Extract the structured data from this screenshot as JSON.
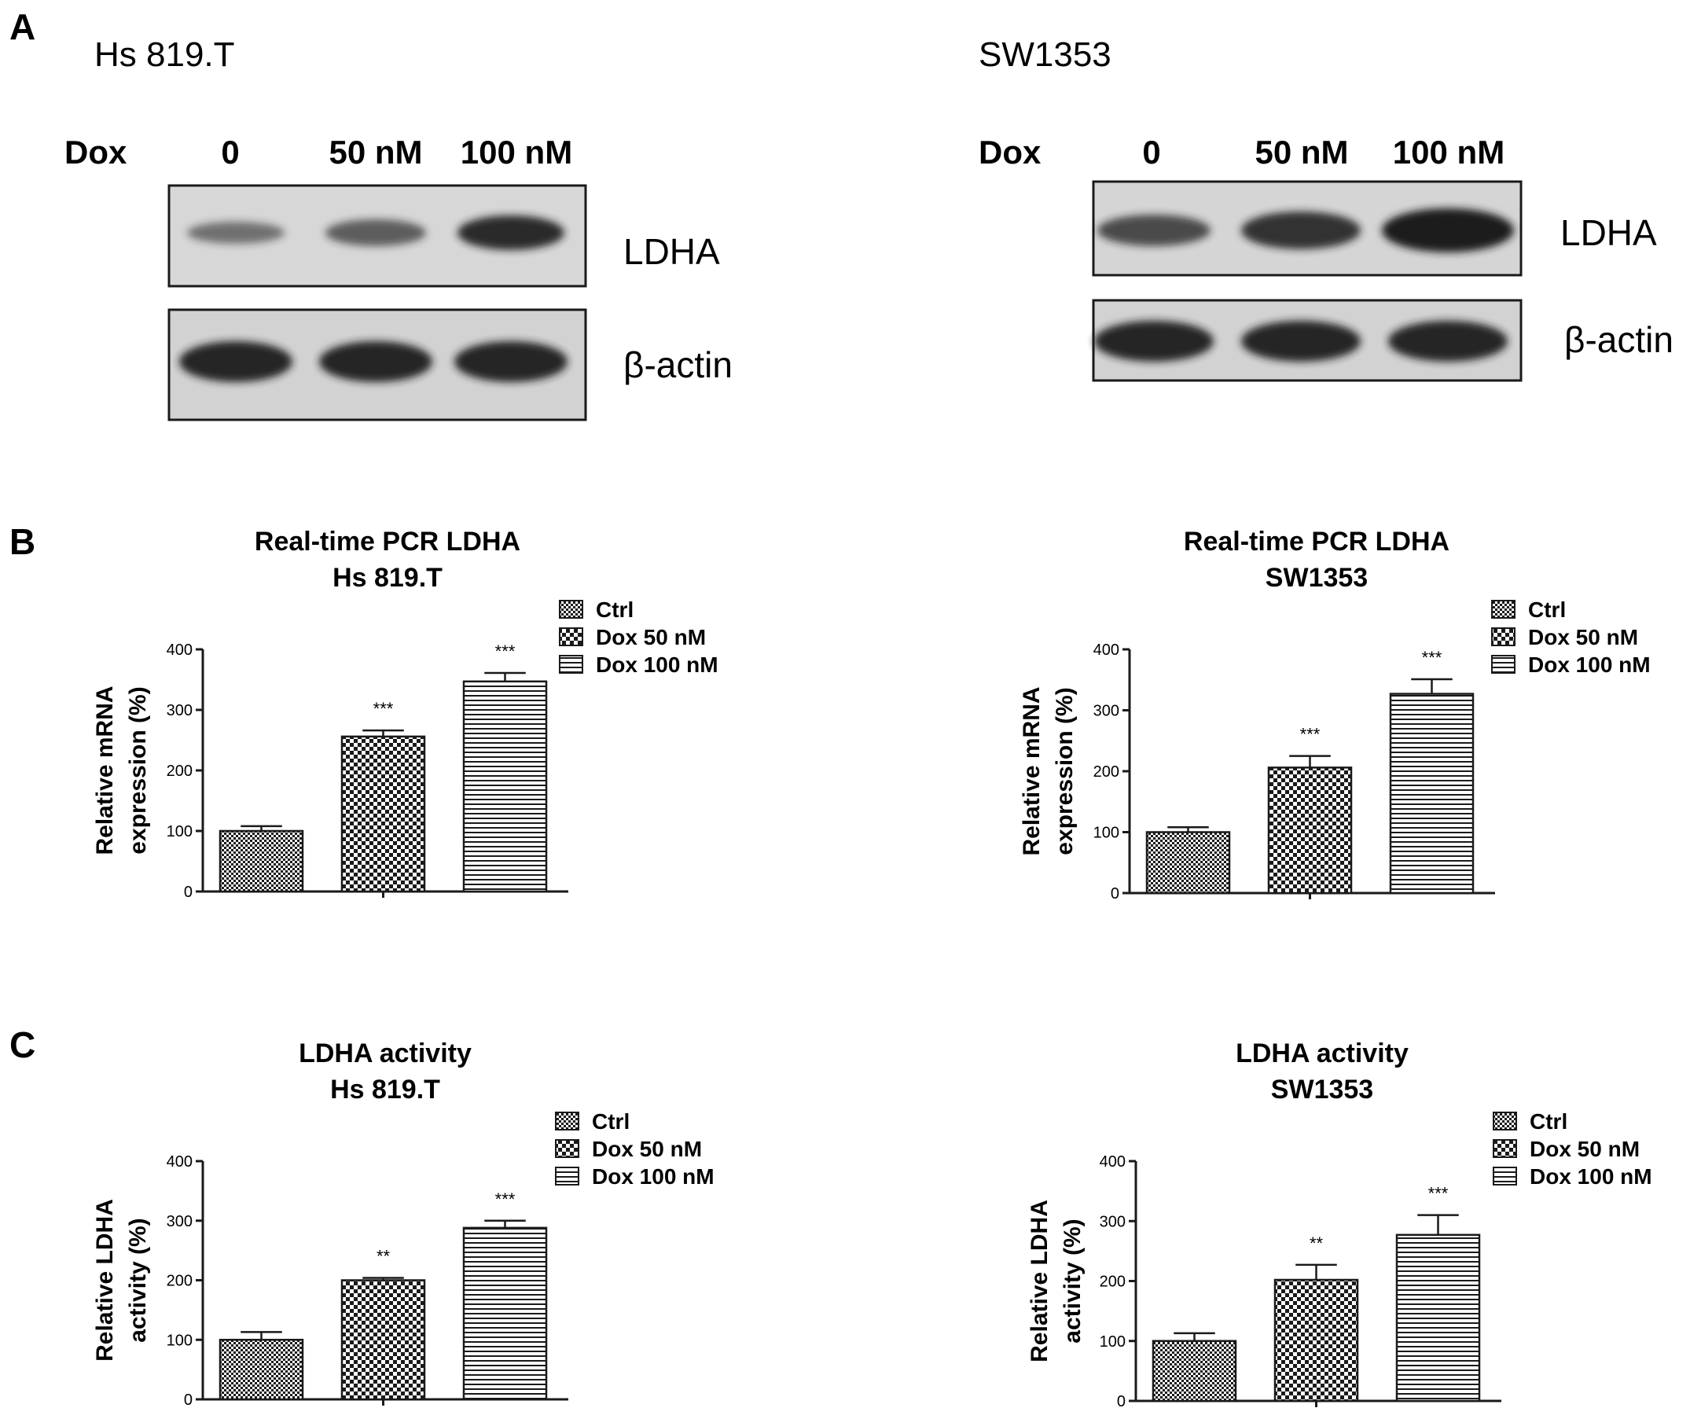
{
  "panel_labels": [
    "A",
    "B",
    "C"
  ],
  "blots": [
    {
      "cell_line": "Hs 819.T",
      "lane_header": "Dox",
      "lanes": [
        "0",
        "50 nM",
        "100 nM"
      ],
      "bands": [
        {
          "protein": "LDHA",
          "intensity": [
            0.55,
            0.65,
            0.92
          ]
        },
        {
          "protein": "β-actin",
          "intensity": [
            0.95,
            0.95,
            0.95
          ]
        }
      ]
    },
    {
      "cell_line": "SW1353",
      "lane_header": "Dox",
      "lanes": [
        "0",
        "50 nM",
        "100 nM"
      ],
      "bands": [
        {
          "protein": "LDHA",
          "intensity": [
            0.75,
            0.88,
            1.0
          ]
        },
        {
          "protein": "β-actin",
          "intensity": [
            0.95,
            0.95,
            0.95
          ]
        }
      ]
    }
  ],
  "legend_entries": [
    "Ctrl",
    "Dox 50 nM",
    "Dox 100 nM"
  ],
  "chart_data": [
    {
      "type": "bar",
      "title": [
        "Real-time PCR LDHA",
        "Hs 819.T"
      ],
      "ylabel": [
        "Relative mRNA",
        "expression (%)"
      ],
      "categories": [
        "Ctrl",
        "Dox 50 nM",
        "Dox 100 nM"
      ],
      "values": [
        100,
        256,
        347
      ],
      "errors": [
        8,
        10,
        14
      ],
      "significance": [
        "",
        "***",
        "***"
      ],
      "ylim": [
        0,
        400
      ],
      "yticks": [
        0,
        100,
        200,
        300,
        400
      ],
      "legend": "top-right"
    },
    {
      "type": "bar",
      "title": [
        "Real-time PCR LDHA",
        "SW1353"
      ],
      "ylabel": [
        "Relative mRNA",
        "expression (%)"
      ],
      "categories": [
        "Ctrl",
        "Dox 50 nM",
        "Dox 100 nM"
      ],
      "values": [
        100,
        206,
        327
      ],
      "errors": [
        8,
        19,
        24
      ],
      "significance": [
        "",
        "***",
        "***"
      ],
      "ylim": [
        0,
        400
      ],
      "yticks": [
        0,
        100,
        200,
        300,
        400
      ],
      "legend": "top-right"
    },
    {
      "type": "bar",
      "title": [
        "LDHA activity",
        "Hs 819.T"
      ],
      "ylabel": [
        "Relative LDHA",
        "activity (%)"
      ],
      "categories": [
        "Ctrl",
        "Dox 50 nM",
        "Dox 100 nM"
      ],
      "values": [
        100,
        200,
        288
      ],
      "errors": [
        13,
        4,
        12
      ],
      "significance": [
        "",
        "**",
        "***"
      ],
      "ylim": [
        0,
        400
      ],
      "yticks": [
        0,
        100,
        200,
        300,
        400
      ],
      "legend": "top-right"
    },
    {
      "type": "bar",
      "title": [
        "LDHA activity",
        "SW1353"
      ],
      "ylabel": [
        "Relative LDHA",
        "activity (%)"
      ],
      "categories": [
        "Ctrl",
        "Dox 50 nM",
        "Dox 100 nM"
      ],
      "values": [
        100,
        202,
        277
      ],
      "errors": [
        13,
        25,
        33
      ],
      "significance": [
        "",
        "**",
        "***"
      ],
      "ylim": [
        0,
        400
      ],
      "yticks": [
        0,
        100,
        200,
        300,
        400
      ],
      "legend": "top-right"
    }
  ]
}
